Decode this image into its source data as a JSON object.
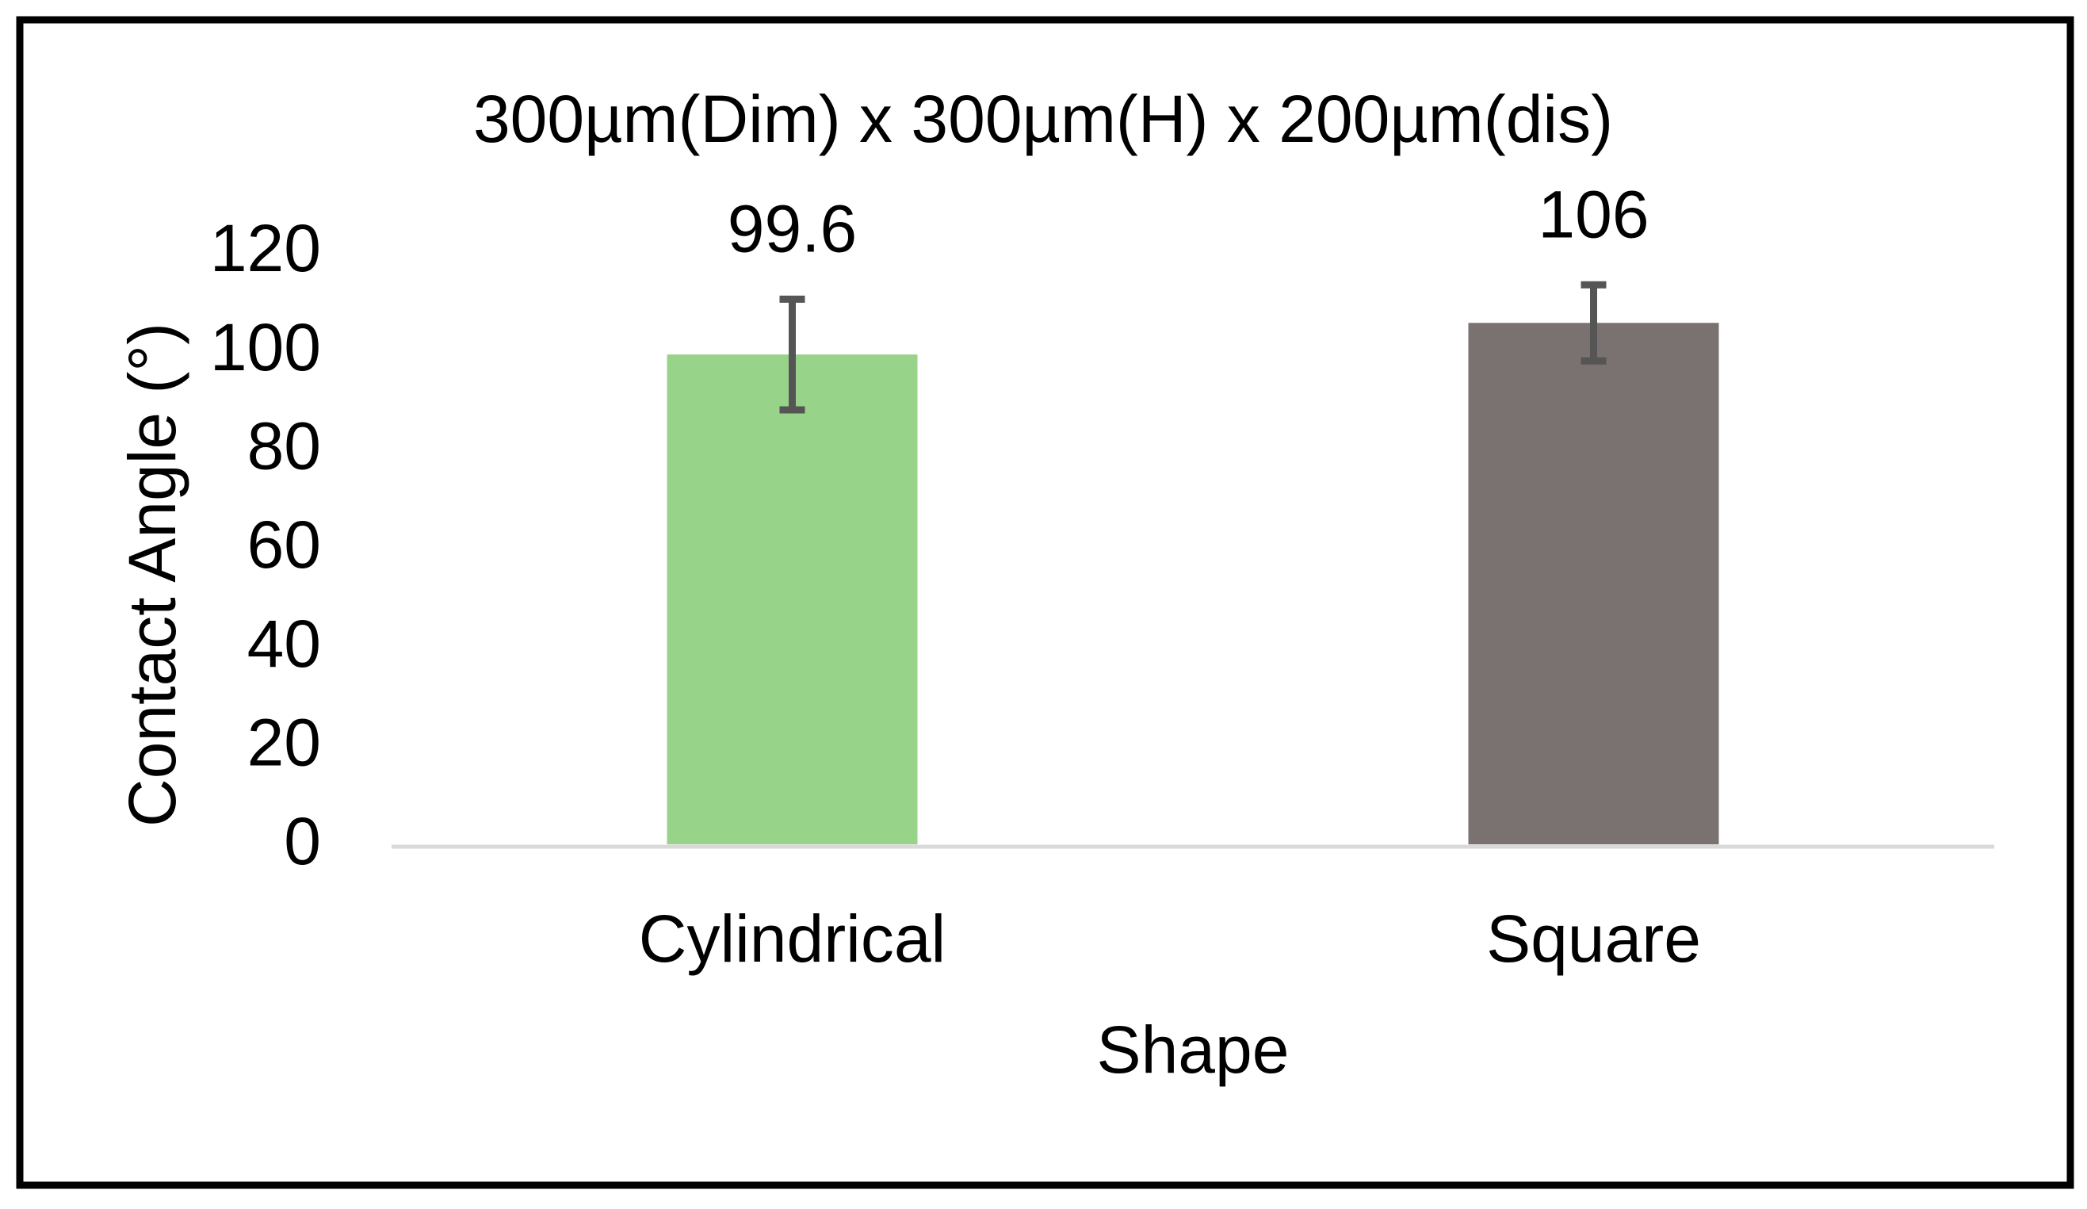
{
  "chart_data": {
    "type": "bar",
    "title": "300µm(Dim) x 300µm(H) x 200µm(dis)",
    "categories": [
      "Cylindrical",
      "Square"
    ],
    "values": [
      99.6,
      106
    ],
    "errors": [
      11.2,
      7.7
    ],
    "colors": [
      "#98d38a",
      "#7a7270"
    ],
    "error_color": "#555555",
    "ylim": [
      0,
      120
    ],
    "yticks": [
      0,
      20,
      40,
      60,
      80,
      100,
      120
    ],
    "grid": false,
    "x_label": "Shape",
    "y_label": "Contact Angle (°)"
  }
}
